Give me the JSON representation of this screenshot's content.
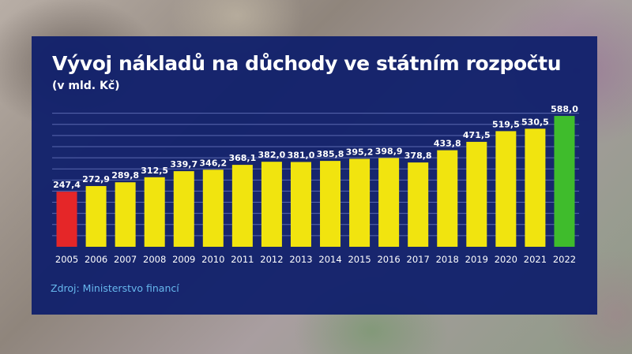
{
  "chart_data": {
    "type": "bar",
    "title": "Vývoj nákladů na důchody ve státním rozpočtu",
    "subtitle": "(v mld. Kč)",
    "categories": [
      "2005",
      "2006",
      "2007",
      "2008",
      "2009",
      "2010",
      "2011",
      "2012",
      "2013",
      "2014",
      "2015",
      "2016",
      "2017",
      "2018",
      "2019",
      "2020",
      "2021",
      "2022"
    ],
    "values": [
      247.4,
      272.9,
      289.8,
      312.5,
      339.7,
      346.2,
      368.1,
      382.0,
      381.0,
      385.8,
      395.2,
      398.9,
      378.8,
      433.8,
      471.5,
      519.5,
      530.5,
      588.0
    ],
    "value_labels": [
      "247,4",
      "272,9",
      "289,8",
      "312,5",
      "339,7",
      "346,2",
      "368,1",
      "382,0",
      "381,0",
      "385,8",
      "395,2",
      "398,9",
      "378,8",
      "433,8",
      "471,5",
      "519,5",
      "530,5",
      "588,0"
    ],
    "bar_colors": [
      "#e52628",
      "#f1e40f",
      "#f1e40f",
      "#f1e40f",
      "#f1e40f",
      "#f1e40f",
      "#f1e40f",
      "#f1e40f",
      "#f1e40f",
      "#f1e40f",
      "#f1e40f",
      "#f1e40f",
      "#f1e40f",
      "#f1e40f",
      "#f1e40f",
      "#f1e40f",
      "#f1e40f",
      "#3fbc2c"
    ],
    "ylim": [
      0,
      620
    ],
    "grid": true,
    "colors": {
      "panel": "#10206c",
      "grid": "#5a68b0",
      "text": "#ffffff",
      "source": "#67b8ee"
    }
  },
  "source": "Zdroj: Ministerstvo financí"
}
